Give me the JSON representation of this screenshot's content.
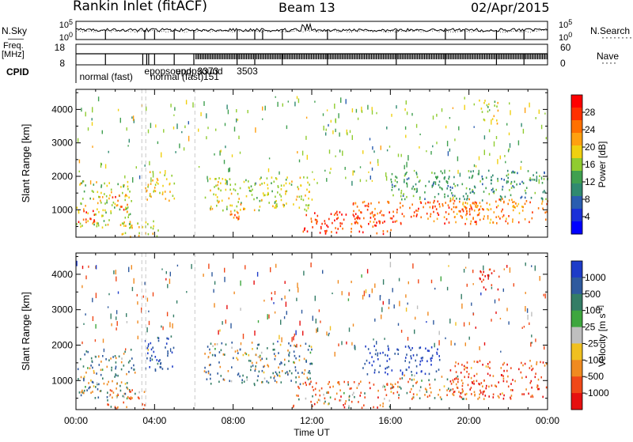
{
  "header": {
    "station": "Rankin Inlet (fitACF)",
    "beam": "Beam 13",
    "date": "02/Apr/2015"
  },
  "aux": {
    "nsky_label": "N.Sky",
    "nsearch_label": "N.Search",
    "freq_label_1": "Freq.",
    "freq_label_2": "[MHz]",
    "nave_label": "Nave",
    "cpid_label": "CPID",
    "noise_ticks_left": [
      "10^5",
      "10^0"
    ],
    "noise_ticks_right": [
      "10^5",
      "10^0"
    ],
    "freq_ticks": [
      "18",
      "8"
    ],
    "nave_ticks": [
      "60",
      "0"
    ],
    "modes": [
      {
        "name": "normal (fast)",
        "start_hr": 0.1
      },
      {
        "name": "epopsound",
        "start_hr": 3.4
      },
      {
        "name": "normal (fast)",
        "start_hr": 3.7
      },
      {
        "name": "151",
        "start_hr": 6.4
      },
      {
        "name": "epopsound",
        "start_hr": 5.0
      },
      {
        "name": "3373",
        "start_hr": 6.1
      },
      {
        "name": "3503",
        "start_hr": 8.1
      }
    ]
  },
  "colorbars": {
    "power": {
      "label": "Power [dB]",
      "ticks": [
        "28",
        "24",
        "20",
        "16",
        "12",
        "8",
        "4"
      ],
      "colors": [
        "#ff0000",
        "#ff3000",
        "#ff7000",
        "#ffa010",
        "#f0d010",
        "#90cc30",
        "#40a050",
        "#308a70",
        "#2a5db0",
        "#1a30d8",
        "#0000ff"
      ]
    },
    "velocity": {
      "label": "Velocity [m s^-1]",
      "ticks": [
        "1000",
        "500",
        "100",
        "25",
        "-25",
        "-100",
        "-500",
        "-1000"
      ],
      "colors": [
        "#1e3cc8",
        "#2f5a9e",
        "#347d66",
        "#3ea63e",
        "#bfbfbf",
        "#f0c020",
        "#f08a20",
        "#f04818",
        "#e61010"
      ]
    }
  },
  "chart_data": [
    {
      "type": "heatmap",
      "name": "power",
      "xlabel": "",
      "ylabel": "Slant Range [km]",
      "xlim": [
        0,
        24
      ],
      "ylim": [
        180,
        4600
      ],
      "yticks": [
        1000,
        2000,
        3000,
        4000
      ],
      "regions": [
        {
          "t0": 0.0,
          "t1": 2.8,
          "r0": 500,
          "r1": 1900,
          "level": 0.55
        },
        {
          "t0": 0.0,
          "t1": 1.0,
          "r0": 650,
          "r1": 1100,
          "level": 0.95
        },
        {
          "t0": 1.8,
          "t1": 2.6,
          "r0": 1000,
          "r1": 1500,
          "level": 0.85
        },
        {
          "t0": 2.2,
          "t1": 4.2,
          "r0": 200,
          "r1": 700,
          "level": 0.6
        },
        {
          "t0": 3.5,
          "t1": 5.0,
          "r0": 1300,
          "r1": 2200,
          "level": 0.6
        },
        {
          "t0": 6.5,
          "t1": 12.0,
          "r0": 1000,
          "r1": 2000,
          "level": 0.55
        },
        {
          "t0": 7.8,
          "t1": 8.8,
          "r0": 700,
          "r1": 1200,
          "level": 0.8
        },
        {
          "t0": 11.5,
          "t1": 16.0,
          "r0": 300,
          "r1": 1000,
          "level": 0.9
        },
        {
          "t0": 14.0,
          "t1": 20.5,
          "r0": 600,
          "r1": 1300,
          "level": 0.85
        },
        {
          "t0": 19.0,
          "t1": 24.0,
          "r0": 600,
          "r1": 1400,
          "level": 0.75
        },
        {
          "t0": 16.0,
          "t1": 24.0,
          "r0": 1300,
          "r1": 2200,
          "level": 0.35
        },
        {
          "t0": 20.5,
          "t1": 21.5,
          "r0": 3600,
          "r1": 4300,
          "level": 0.55
        }
      ]
    },
    {
      "type": "heatmap",
      "name": "velocity",
      "xlabel": "Time UT",
      "ylabel": "Slant Range [km]",
      "xlim": [
        0,
        24
      ],
      "ylim": [
        180,
        4600
      ],
      "xticks": [
        "00:00",
        "04:00",
        "08:00",
        "12:00",
        "16:00",
        "20:00",
        "00:00"
      ],
      "yticks": [
        1000,
        2000,
        3000,
        4000
      ],
      "regions": [
        {
          "t0": 0.0,
          "t1": 3.0,
          "r0": 500,
          "r1": 1900,
          "vel": 150
        },
        {
          "t0": 1.5,
          "t1": 3.5,
          "r0": 200,
          "r1": 800,
          "vel": -300
        },
        {
          "t0": 3.5,
          "t1": 5.0,
          "r0": 1300,
          "r1": 2300,
          "vel": 600
        },
        {
          "t0": 6.5,
          "t1": 12.0,
          "r0": 900,
          "r1": 2100,
          "vel": 180
        },
        {
          "t0": 11.0,
          "t1": 16.0,
          "r0": 250,
          "r1": 1000,
          "vel": -300
        },
        {
          "t0": 14.5,
          "t1": 18.5,
          "r0": 1200,
          "r1": 2000,
          "vel": 800
        },
        {
          "t0": 16.0,
          "t1": 20.0,
          "r0": 500,
          "r1": 1200,
          "vel": -200
        },
        {
          "t0": 19.0,
          "t1": 24.0,
          "r0": 500,
          "r1": 1600,
          "vel": -500
        },
        {
          "t0": 20.5,
          "t1": 21.5,
          "r0": 3600,
          "r1": 4300,
          "vel": -700
        }
      ]
    }
  ]
}
